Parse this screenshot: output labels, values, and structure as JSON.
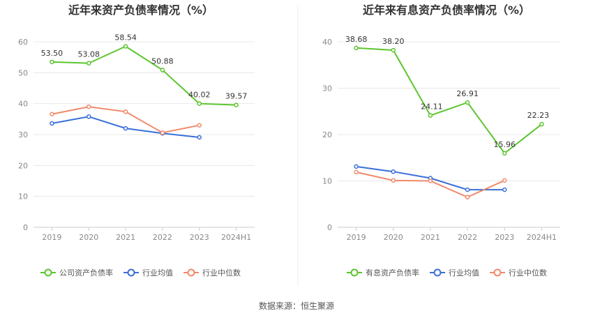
{
  "source": "数据来源：恒生聚源",
  "colors": {
    "company": "#5cc52e",
    "avg": "#3a6fd8",
    "median": "#f0896a",
    "grid": "#e8e8e8",
    "axis": "#cccccc"
  },
  "chart_data": [
    {
      "type": "line",
      "title": "近年来资产负债率情况（%）",
      "categories": [
        "2019",
        "2020",
        "2021",
        "2022",
        "2023",
        "2024H1"
      ],
      "ylim": [
        0,
        60
      ],
      "yticks": [
        0,
        10,
        20,
        30,
        40,
        50,
        60
      ],
      "series": [
        {
          "key": "company",
          "name": "公司资产负债率",
          "values": [
            53.5,
            53.08,
            58.54,
            50.88,
            40.02,
            39.57
          ],
          "labels": [
            "53.50",
            "53.08",
            "58.54",
            "50.88",
            "40.02",
            "39.57"
          ]
        },
        {
          "key": "avg",
          "name": "行业均值",
          "values": [
            33.6,
            35.8,
            32.0,
            30.4,
            29.1,
            null
          ]
        },
        {
          "key": "median",
          "name": "行业中位数",
          "values": [
            36.6,
            39.0,
            37.4,
            30.6,
            33.0,
            null
          ]
        }
      ]
    },
    {
      "type": "line",
      "title": "近年来有息资产负债率情况（%）",
      "categories": [
        "2019",
        "2020",
        "2021",
        "2022",
        "2023",
        "2024H1"
      ],
      "ylim": [
        0,
        40
      ],
      "yticks": [
        0,
        10,
        20,
        30,
        40
      ],
      "series": [
        {
          "key": "company",
          "name": "有息资产负债率",
          "values": [
            38.68,
            38.2,
            24.11,
            26.91,
            15.96,
            22.23
          ],
          "labels": [
            "38.68",
            "38.20",
            "24.11",
            "26.91",
            "15.96",
            "22.23"
          ]
        },
        {
          "key": "avg",
          "name": "行业均值",
          "values": [
            13.1,
            12.0,
            10.6,
            8.1,
            8.1,
            null
          ]
        },
        {
          "key": "median",
          "name": "行业中位数",
          "values": [
            11.9,
            10.1,
            10.0,
            6.5,
            10.1,
            null
          ]
        }
      ]
    }
  ]
}
